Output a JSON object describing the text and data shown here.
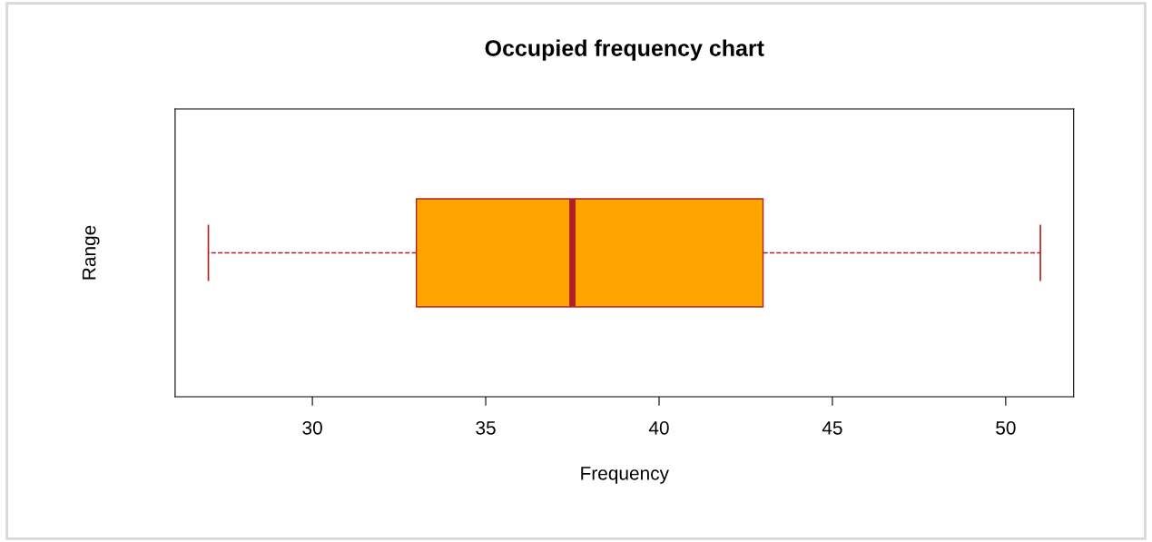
{
  "chart_data": {
    "type": "box",
    "orientation": "horizontal",
    "title": "Occupied frequency chart",
    "xlabel": "Frequency",
    "ylabel": "Range",
    "categories": [
      null
    ],
    "series": [
      {
        "color": "#ffa500",
        "boxes": [
          {
            "low": 27,
            "q1": 33,
            "median": 37.5,
            "q3": 43,
            "high": 51
          }
        ]
      }
    ],
    "xlim": [
      26.04,
      51.96
    ],
    "xticks": [
      30,
      35,
      40,
      45,
      50
    ],
    "tick_labels": "x",
    "grid": false,
    "line_style": "dashed"
  }
}
